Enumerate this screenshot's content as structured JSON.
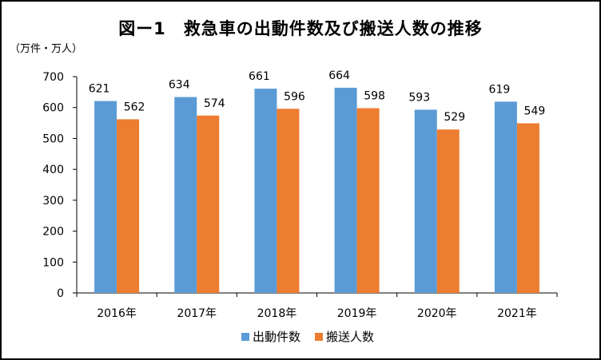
{
  "chart_data": {
    "type": "bar",
    "title": "図ー1　救急車の出動件数及び搬送人数の推移",
    "unit_label": "（万件・万人）",
    "categories": [
      "2016年",
      "2017年",
      "2018年",
      "2019年",
      "2020年",
      "2021年"
    ],
    "series": [
      {
        "name": "出動件数",
        "color": "#5b9bd5",
        "values": [
          621,
          634,
          661,
          664,
          593,
          619
        ]
      },
      {
        "name": "搬送人数",
        "color": "#ed7d31",
        "values": [
          562,
          574,
          596,
          598,
          529,
          549
        ]
      }
    ],
    "ylim": [
      0,
      700
    ],
    "yticks": [
      0,
      100,
      200,
      300,
      400,
      500,
      600,
      700
    ],
    "grid": false,
    "legend_position": "bottom"
  }
}
